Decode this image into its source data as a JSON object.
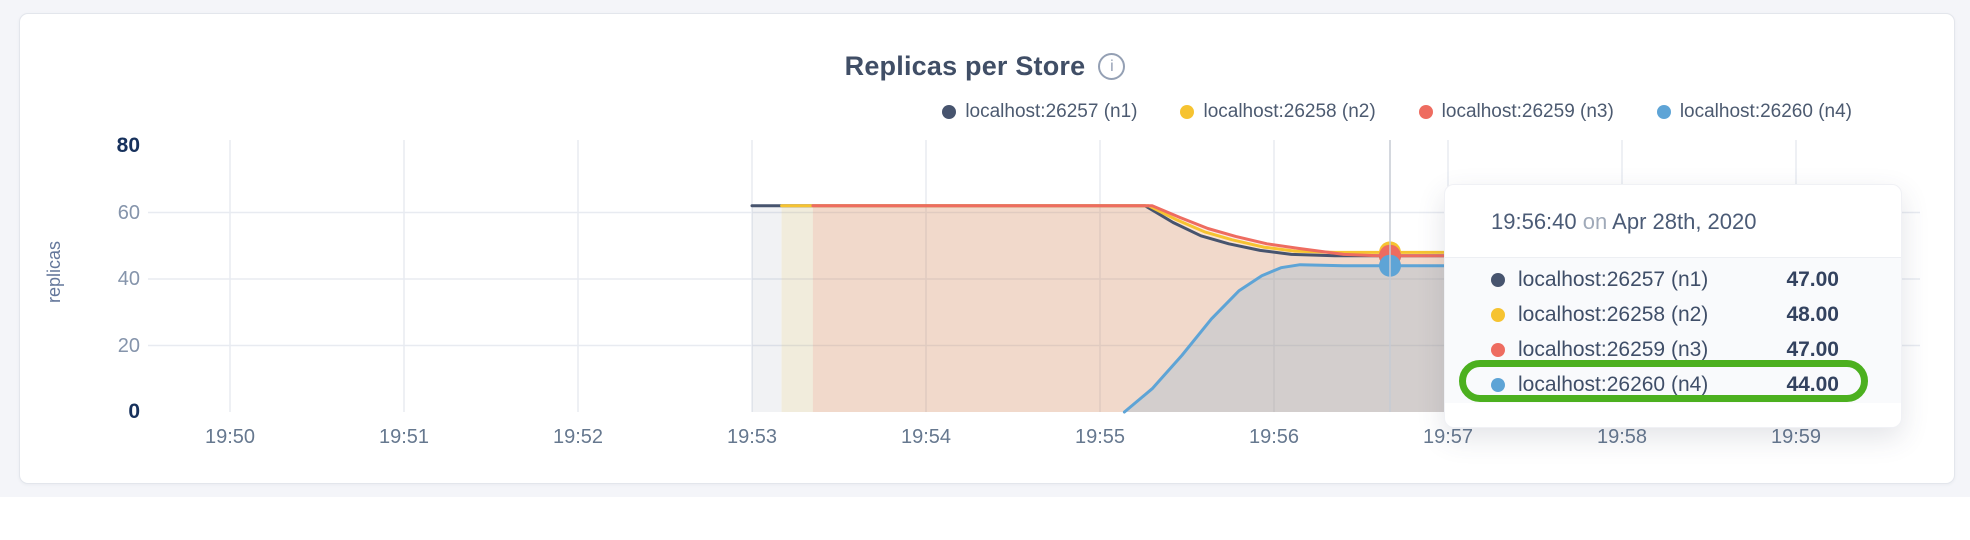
{
  "header": {
    "title": "Replicas per Store",
    "info_icon_glyph": "i"
  },
  "chart_data": {
    "type": "area",
    "title": "Replicas per Store",
    "xlabel": "",
    "ylabel": "replicas",
    "x_unit": "minutes after 19:50",
    "x_ticks": [
      "19:50",
      "19:51",
      "19:52",
      "19:53",
      "19:54",
      "19:55",
      "19:56",
      "19:57",
      "19:58",
      "19:59"
    ],
    "y_ticks": [
      {
        "value": 0,
        "label": "0",
        "strong": true
      },
      {
        "value": 20,
        "label": "20",
        "strong": false
      },
      {
        "value": 40,
        "label": "40",
        "strong": false
      },
      {
        "value": 60,
        "label": "60",
        "strong": false
      },
      {
        "value": 80,
        "label": "80",
        "strong": true
      }
    ],
    "y_grid_values": [
      20,
      40,
      60
    ],
    "ylim": [
      0,
      82
    ],
    "grid": true,
    "legend_position": "top-right",
    "series": [
      {
        "name": "localhost:26257 (n1)",
        "color": "#47546e",
        "fill_opacity": 0.08,
        "points": [
          [
            3.0,
            62
          ],
          [
            5.26,
            62
          ],
          [
            5.42,
            57.0
          ],
          [
            5.58,
            53.0
          ],
          [
            5.74,
            50.6
          ],
          [
            5.92,
            48.6
          ],
          [
            6.1,
            47.4
          ],
          [
            6.35,
            47
          ],
          [
            7.0,
            47
          ]
        ],
        "hover_value": 47
      },
      {
        "name": "localhost:26258 (n2)",
        "color": "#f6c331",
        "fill_opacity": 0.12,
        "points": [
          [
            3.17,
            62
          ],
          [
            5.28,
            62
          ],
          [
            5.44,
            57.8
          ],
          [
            5.6,
            54.2
          ],
          [
            5.76,
            51.8
          ],
          [
            5.94,
            49.6
          ],
          [
            6.12,
            48.4
          ],
          [
            6.35,
            48
          ],
          [
            7.0,
            48
          ]
        ],
        "hover_value": 48
      },
      {
        "name": "localhost:26259 (n3)",
        "color": "#ee6c60",
        "fill_opacity": 0.14,
        "points": [
          [
            3.35,
            62
          ],
          [
            5.3,
            62
          ],
          [
            5.46,
            58.5
          ],
          [
            5.62,
            55.2
          ],
          [
            5.78,
            52.8
          ],
          [
            5.96,
            50.6
          ],
          [
            6.14,
            49.2
          ],
          [
            6.4,
            47.4
          ],
          [
            6.6,
            47
          ],
          [
            7.0,
            47
          ]
        ],
        "hover_value": 47
      },
      {
        "name": "localhost:26260 (n4)",
        "color": "#5ea4d6",
        "fill_opacity": 0.2,
        "points": [
          [
            5.14,
            0
          ],
          [
            5.3,
            7
          ],
          [
            5.47,
            17
          ],
          [
            5.64,
            28
          ],
          [
            5.8,
            36.5
          ],
          [
            5.93,
            41
          ],
          [
            6.04,
            43.4
          ],
          [
            6.15,
            44.3
          ],
          [
            6.4,
            44
          ],
          [
            7.0,
            44
          ]
        ],
        "hover_value": 44
      }
    ],
    "hover": {
      "t": 6.6667,
      "time_label": "19:56:40"
    }
  },
  "tooltip": {
    "time": "19:56:40",
    "on_word": "on",
    "date": "Apr 28th, 2020",
    "rows": [
      {
        "label": "localhost:26257 (n1)",
        "value": "47.00"
      },
      {
        "label": "localhost:26258 (n2)",
        "value": "48.00"
      },
      {
        "label": "localhost:26259 (n3)",
        "value": "47.00"
      },
      {
        "label": "localhost:26260 (n4)",
        "value": "44.00"
      }
    ],
    "highlighted_row_index": 3,
    "highlight_color": "#4cb01f"
  },
  "style_colors": {
    "page_background": "#f4f5f9",
    "grid_line": "#e8ebf1",
    "crosshair": "#c6cbd4",
    "tick_strong": "#17315c",
    "tick_light": "#8594ab"
  }
}
